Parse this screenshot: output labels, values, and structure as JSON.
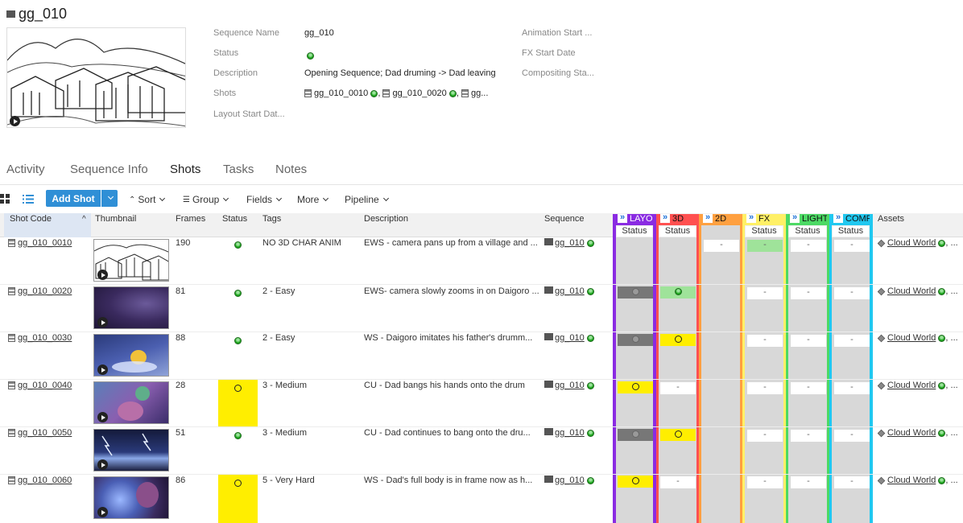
{
  "title": "gg_010",
  "info": {
    "labels": [
      "Sequence Name",
      "Status",
      "Description",
      "Shots",
      "Layout Start Dat..."
    ],
    "values": {
      "name": "gg_010",
      "description": "Opening Sequence; Dad druming -> Dad leaving"
    },
    "shots_list": [
      "gg_010_0010",
      "gg_010_0020",
      "gg..."
    ],
    "right_labels": [
      "Animation Start ...",
      "FX Start Date",
      "Compositing Sta..."
    ]
  },
  "tabs": [
    "Activity",
    "Sequence Info",
    "Shots",
    "Tasks",
    "Notes"
  ],
  "toolbar": {
    "add_shot": "Add Shot",
    "sort": "Sort",
    "group": "Group",
    "fields": "Fields",
    "more": "More",
    "pipeline": "Pipeline"
  },
  "columns": {
    "shot_code": "Shot Code",
    "thumbnail": "Thumbnail",
    "frames": "Frames",
    "status": "Status",
    "tags": "Tags",
    "description": "Description",
    "sequence": "Sequence",
    "assets": "Assets"
  },
  "pipeline_steps": [
    {
      "name": "LAYO...",
      "sub": "Status",
      "color": "#8a2be2"
    },
    {
      "name": "3D",
      "sub": "Status",
      "color": "#ff5050"
    },
    {
      "name": "2D",
      "sub": "",
      "color": "#ffa040"
    },
    {
      "name": "FX",
      "sub": "Status",
      "color": "#fff066"
    },
    {
      "name": "LIGHT",
      "sub": "Status",
      "color": "#4cd964"
    },
    {
      "name": "COMP",
      "sub": "Status",
      "color": "#20c8f0"
    }
  ],
  "colors": {
    "accent": "#2f8fd6",
    "yellow_status": "#ffee00",
    "green_status": "#1aa31a"
  },
  "rows": [
    {
      "code": "gg_010_0010",
      "frames": "190",
      "status": "green",
      "tags": "NO 3D CHAR ANIM",
      "description": "EWS - camera pans up from a village and ...",
      "sequence": "gg_010",
      "asset": "Cloud World",
      "more": "..."
    },
    {
      "code": "gg_010_0020",
      "frames": "81",
      "status": "green",
      "tags": "2 - Easy",
      "description": "EWS- camera slowly zooms in on Daigoro ...",
      "sequence": "gg_010",
      "asset": "Cloud World",
      "more": "..."
    },
    {
      "code": "gg_010_0030",
      "frames": "88",
      "status": "green",
      "tags": "2 - Easy",
      "description": "WS - Daigoro imitates his father's drumm...",
      "sequence": "gg_010",
      "asset": "Cloud World",
      "more": "..."
    },
    {
      "code": "gg_010_0040",
      "frames": "28",
      "status": "yellow",
      "tags": "3 - Medium",
      "description": "CU - Dad bangs his hands onto the drum",
      "sequence": "gg_010",
      "asset": "Cloud World",
      "more": "..."
    },
    {
      "code": "gg_010_0050",
      "frames": "51",
      "status": "green",
      "tags": "3 - Medium",
      "description": "CU - Dad continues to bang onto the dru...",
      "sequence": "gg_010",
      "asset": "Cloud World",
      "more": "..."
    },
    {
      "code": "gg_010_0060",
      "frames": "86",
      "status": "yellow",
      "tags": "5 - Very Hard",
      "description": "WS - Dad's full body is in frame now as h...",
      "sequence": "gg_010",
      "asset": "Cloud World",
      "more": "..."
    }
  ],
  "dash": "-"
}
